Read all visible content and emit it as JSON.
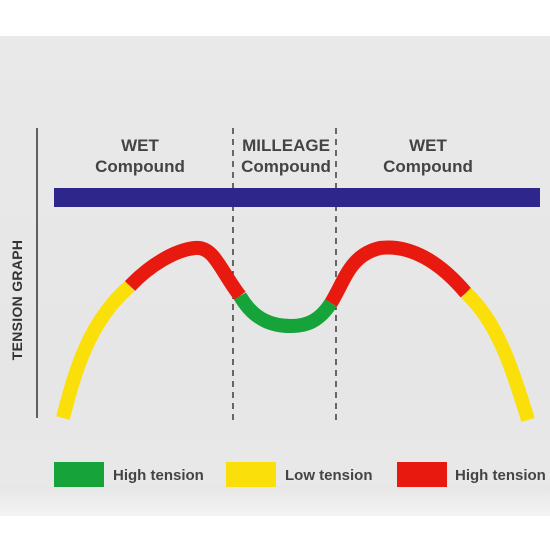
{
  "diagram": {
    "y_axis_label": "TENSION GRAPH",
    "zones": [
      {
        "line1": "WET",
        "line2": "Compound"
      },
      {
        "line1": "MILLEAGE",
        "line2": "Compound"
      },
      {
        "line1": "WET",
        "line2": "Compound"
      }
    ],
    "legend": [
      {
        "label": "High tension",
        "color": "#16a33a"
      },
      {
        "label": "Low tension",
        "color": "#fadf0a"
      },
      {
        "label": "High tension",
        "color": "#e81a0f"
      }
    ],
    "colors": {
      "band": "#2e268a",
      "green": "#16a33a",
      "yellow": "#fadf0a",
      "red": "#e81a0f",
      "text": "#444444"
    }
  }
}
